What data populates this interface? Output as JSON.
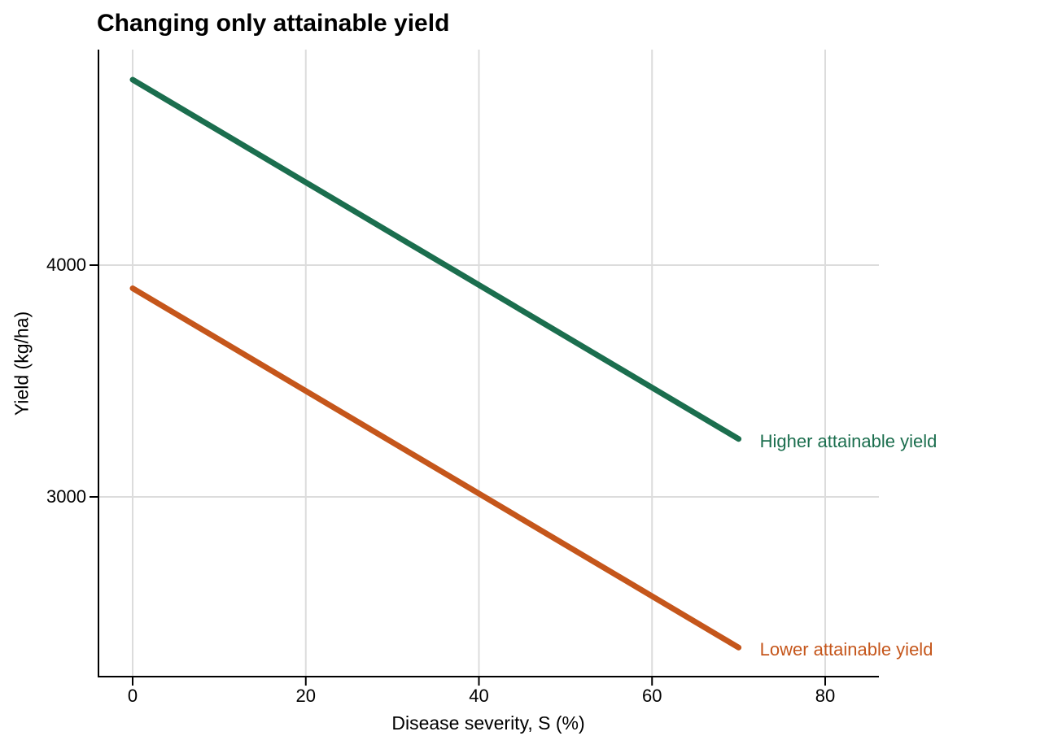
{
  "page": {
    "background": "#FFFFFF"
  },
  "chart_data": {
    "type": "line",
    "title": "Changing only attainable yield",
    "xlabel": "Disease severity, S (%)",
    "ylabel": "Yield (kg/ha)",
    "x_ticks": [
      0,
      20,
      40,
      60,
      80
    ],
    "y_ticks": [
      4000,
      3000
    ],
    "xlim": [
      -4,
      86
    ],
    "ylim": [
      2225,
      4930
    ],
    "grid": true,
    "legend_position": "direct labels right of line ends",
    "series": [
      {
        "name": "Higher attainable yield",
        "color": "#1B6E4E",
        "points": [
          [
            0,
            4800
          ],
          [
            70,
            3250
          ]
        ]
      },
      {
        "name": "Lower attainable yield",
        "color": "#C5561B",
        "points": [
          [
            0,
            3900
          ],
          [
            70,
            2350
          ]
        ]
      }
    ]
  },
  "style": {
    "grid_color": "#DCDCDC",
    "axis_color": "#000000",
    "text_color": "#000000",
    "line_width": 7
  }
}
